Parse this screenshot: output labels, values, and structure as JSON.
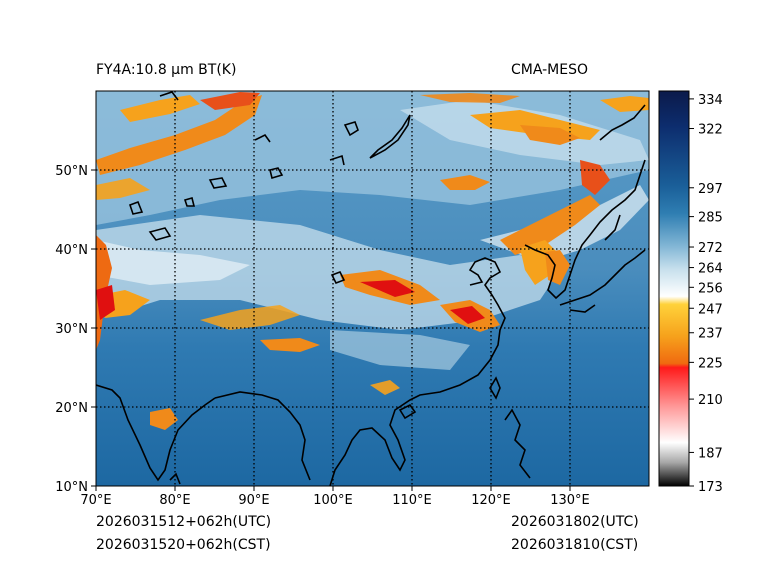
{
  "header": {
    "left_title": "FY4A:10.8 μm BT(K)",
    "right_title": "CMA-MESO"
  },
  "footer": {
    "init_utc": "2026031512+062h(UTC)",
    "init_cst": "2026031520+062h(CST)",
    "valid_utc": "2026031802(UTC)",
    "valid_cst": "2026031810(CST)"
  },
  "map": {
    "lon_labels": [
      "70°E",
      "80°E",
      "90°E",
      "100°E",
      "110°E",
      "120°E",
      "130°E"
    ],
    "lat_labels": [
      "10°N",
      "20°N",
      "30°N",
      "40°N",
      "50°N"
    ],
    "lon_range": [
      70,
      140
    ],
    "lat_range": [
      10,
      60
    ]
  },
  "colorbar": {
    "ticks": [
      "334",
      "322",
      "297",
      "285",
      "272",
      "264",
      "256",
      "247",
      "237",
      "225",
      "210",
      "187",
      "173"
    ],
    "range": [
      173,
      336
    ]
  },
  "colors": {
    "cold_cloud": "#f08a1a",
    "very_cold": "#e01010",
    "clear_sky": "#1f6fa8",
    "mid_cloud": "#b8d8ea"
  }
}
